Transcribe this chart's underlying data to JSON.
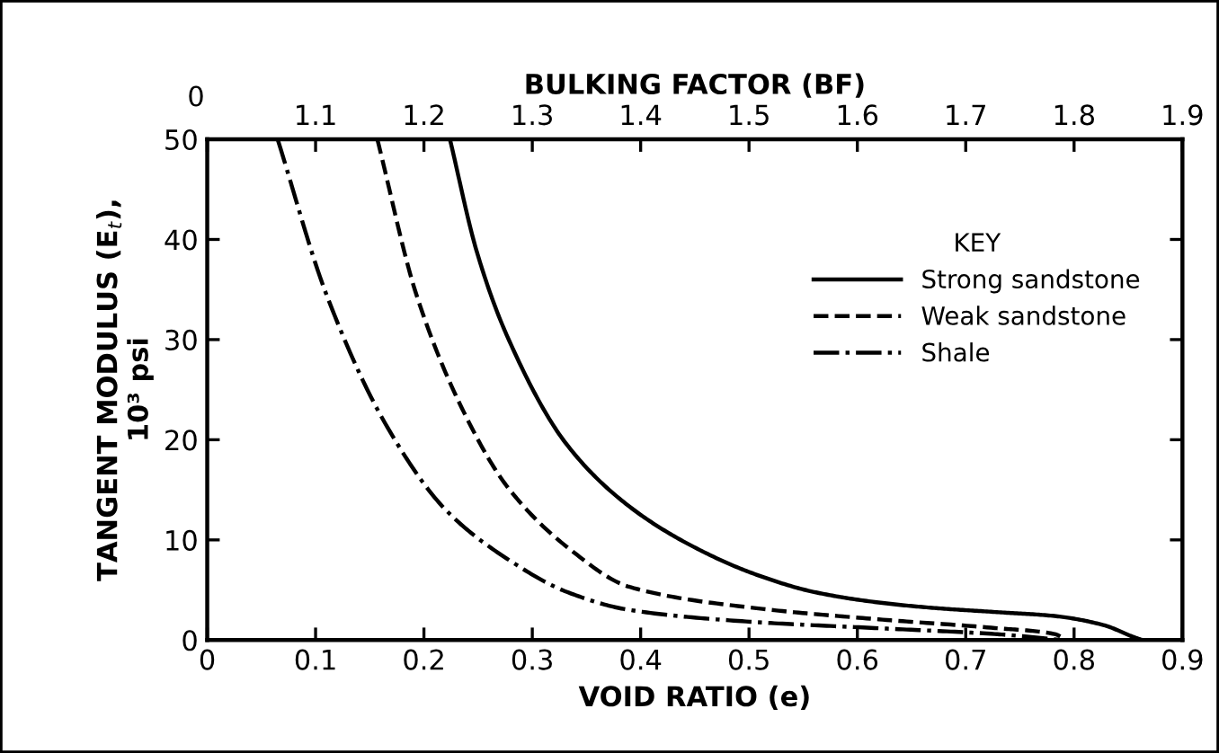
{
  "chart_data": {
    "type": "line",
    "xlabel": "VOID RATIO (e)",
    "x2label": "BULKING FACTOR (BF)",
    "ylabel": "TANGENT MODULUS (E$_{t}$),\n10³ psi",
    "legend_title": "KEY",
    "legend": "right",
    "grid": false,
    "xlim": [
      0,
      0.9
    ],
    "xticks": [
      0,
      0.1,
      0.2,
      0.3,
      0.4,
      0.5,
      0.6,
      0.7,
      0.8,
      0.9
    ],
    "x2lim": [
      1.0,
      1.9
    ],
    "annotations": [
      "0"
    ],
    "x2ticks": [
      {
        "value": 1.0,
        "label": null
      },
      1.1,
      1.2,
      1.3,
      1.4,
      1.5,
      1.6,
      1.7,
      1.8,
      1.9
    ],
    "ylim": [
      0,
      50
    ],
    "yticks": [
      0,
      10,
      20,
      30,
      40,
      50
    ],
    "series": [
      {
        "name": "Strong sandstone",
        "color": "#000000",
        "line_style": "solid",
        "x": [
          0.224,
          0.249,
          0.277,
          0.332,
          0.39,
          0.449,
          0.505,
          0.56,
          0.616,
          0.671,
          0.727,
          0.782,
          0.827,
          0.855,
          0.863
        ],
        "values": [
          50,
          38.7,
          30.3,
          19.5,
          13.3,
          9.3,
          6.6,
          4.8,
          3.8,
          3.2,
          2.8,
          2.4,
          1.5,
          0.3,
          0
        ]
      },
      {
        "name": "Weak sandstone",
        "color": "#000000",
        "line_style": "dashed",
        "x": [
          0.157,
          0.193,
          0.238,
          0.277,
          0.332,
          0.39,
          0.505,
          0.616,
          0.727,
          0.782,
          0.793
        ],
        "values": [
          50,
          34.5,
          22.5,
          15.3,
          9.3,
          5.3,
          3.2,
          2.1,
          1.2,
          0.6,
          0
        ]
      },
      {
        "name": "Shale",
        "color": "#000000",
        "line_style": "dashdot",
        "x": [
          0.065,
          0.11,
          0.166,
          0.221,
          0.277,
          0.332,
          0.39,
          0.505,
          0.616,
          0.727,
          0.79
        ],
        "values": [
          50,
          34.5,
          21.3,
          12.9,
          8.1,
          4.8,
          3.0,
          1.8,
          1.2,
          0.6,
          0
        ]
      }
    ]
  }
}
